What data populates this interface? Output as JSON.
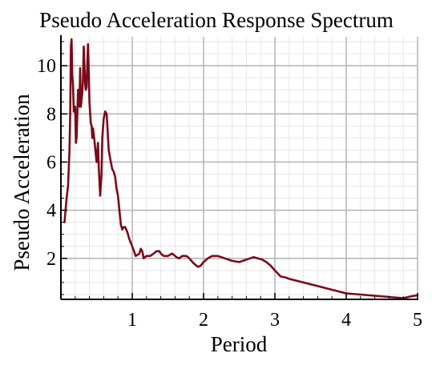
{
  "chart_data": {
    "type": "line",
    "title": "Pseudo Acceleration Response Spectrum",
    "xlabel": "Period",
    "ylabel": "Pseudo Acceleration",
    "xlim": [
      0,
      5
    ],
    "ylim": [
      0.3,
      11.2
    ],
    "x_ticks": [
      1,
      2,
      3,
      4,
      5
    ],
    "y_ticks": [
      2,
      4,
      6,
      8,
      10
    ],
    "grid": true,
    "legend": "none",
    "colors": {
      "line": "#7a0a1a",
      "grid_major": "#b8b8b8",
      "grid_minor": "#e6e6e6",
      "axis": "#000000"
    },
    "series": [
      {
        "x": [
          0.05,
          0.08,
          0.1,
          0.12,
          0.13,
          0.14,
          0.15,
          0.16,
          0.17,
          0.18,
          0.2,
          0.21,
          0.22,
          0.23,
          0.24,
          0.25,
          0.26,
          0.27,
          0.28,
          0.29,
          0.3,
          0.31,
          0.32,
          0.33,
          0.34,
          0.35,
          0.36,
          0.37,
          0.38,
          0.39,
          0.4,
          0.41,
          0.42,
          0.43,
          0.44,
          0.45,
          0.47,
          0.5,
          0.52,
          0.53,
          0.55,
          0.57,
          0.58,
          0.6,
          0.62,
          0.64,
          0.65,
          0.67,
          0.7,
          0.72,
          0.74,
          0.76,
          0.78,
          0.8,
          0.82,
          0.84,
          0.86,
          0.88,
          0.9,
          0.93,
          0.96,
          1.0,
          1.05,
          1.1,
          1.12,
          1.14,
          1.16,
          1.2,
          1.25,
          1.3,
          1.34,
          1.38,
          1.4,
          1.44,
          1.5,
          1.56,
          1.62,
          1.66,
          1.7,
          1.76,
          1.8,
          1.86,
          1.92,
          1.96,
          2.0,
          2.06,
          2.12,
          2.2,
          2.3,
          2.4,
          2.5,
          2.6,
          2.7,
          2.76,
          2.82,
          2.88,
          2.94,
          3.0,
          3.08,
          3.16,
          3.2,
          3.4,
          3.6,
          3.8,
          4.0,
          4.2,
          4.4,
          4.6,
          4.8,
          4.9,
          5.0
        ],
        "y": [
          3.5,
          4.5,
          5.0,
          6.5,
          8.0,
          10.8,
          11.1,
          9.6,
          9.2,
          8.1,
          8.3,
          6.8,
          7.0,
          8.0,
          9.0,
          8.7,
          8.3,
          9.9,
          8.3,
          8.6,
          8.9,
          9.5,
          10.8,
          10.0,
          9.2,
          9.0,
          9.1,
          10.0,
          10.9,
          9.8,
          8.5,
          8.0,
          7.6,
          7.5,
          7.0,
          7.4,
          6.9,
          6.0,
          6.8,
          5.8,
          4.6,
          5.5,
          7.0,
          7.8,
          8.1,
          8.0,
          7.6,
          6.5,
          6.0,
          5.7,
          5.6,
          5.4,
          4.9,
          4.6,
          4.0,
          3.4,
          3.2,
          3.3,
          3.3,
          3.1,
          2.8,
          2.5,
          2.1,
          2.2,
          2.4,
          2.3,
          2.0,
          2.1,
          2.1,
          2.2,
          2.3,
          2.3,
          2.2,
          2.1,
          2.1,
          2.2,
          2.05,
          2.0,
          2.1,
          2.1,
          2.0,
          1.8,
          1.65,
          1.7,
          1.85,
          2.0,
          2.1,
          2.1,
          2.0,
          1.9,
          1.85,
          1.95,
          2.05,
          2.0,
          1.95,
          1.85,
          1.7,
          1.5,
          1.25,
          1.2,
          1.15,
          1.0,
          0.85,
          0.7,
          0.55,
          0.5,
          0.45,
          0.4,
          0.35,
          0.42,
          0.47
        ]
      }
    ]
  }
}
